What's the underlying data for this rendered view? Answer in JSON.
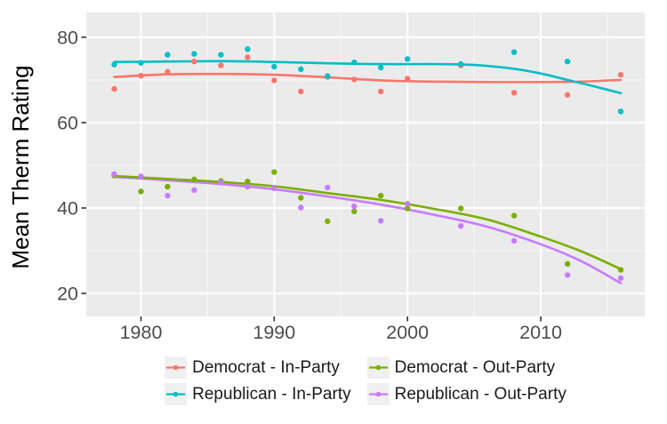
{
  "figure": {
    "background": "#FFFFFF"
  },
  "colors": {
    "panel_bg": "#EBEBEB",
    "grid_major": "#FFFFFF",
    "grid_minor": "#FFFFFF",
    "axis_text": "#4D4D4D",
    "axis_title": "#000000",
    "tick_mark": "#333333",
    "legend_key_bg": "#F0F0F0",
    "legend_text": "#1A1A1A"
  },
  "chart_data": {
    "type": "scatter",
    "subtype": "points-with-loess-smooth-lines",
    "title": "",
    "xlabel": "",
    "ylabel": "Mean Therm Rating",
    "xlim": [
      1975.9,
      2017.8
    ],
    "ylim": [
      14.6,
      85.8
    ],
    "x_ticks": [
      1980,
      1990,
      2000,
      2010
    ],
    "x_minor": [
      1985,
      1995,
      2005,
      2015
    ],
    "y_ticks": [
      20,
      40,
      60,
      80
    ],
    "y_minor": [
      30,
      50,
      70
    ],
    "grid": "on",
    "legend_position": "bottom",
    "years": [
      1978,
      1980,
      1982,
      1984,
      1986,
      1988,
      1990,
      1992,
      1994,
      1996,
      1998,
      2000,
      2004,
      2008,
      2012,
      2016
    ],
    "series": [
      {
        "name": "Democrat - In-Party",
        "color": "#F8766D",
        "values": [
          67.9,
          71.0,
          71.9,
          74.3,
          73.4,
          75.3,
          69.9,
          67.3,
          70.7,
          70.1,
          67.3,
          70.3,
          73.4,
          67.0,
          66.5,
          71.2
        ],
        "trend": [
          [
            1978,
            70.7
          ],
          [
            1982,
            71.3
          ],
          [
            1986,
            71.4
          ],
          [
            1990,
            71.2
          ],
          [
            1994,
            70.6
          ],
          [
            1998,
            69.9
          ],
          [
            2002,
            69.6
          ],
          [
            2006,
            69.5
          ],
          [
            2010,
            69.5
          ],
          [
            2013,
            69.6
          ],
          [
            2016,
            70.0
          ]
        ]
      },
      {
        "name": "Republican - In-Party",
        "color": "#00BFC4",
        "values": [
          73.6,
          74.0,
          75.9,
          76.1,
          75.9,
          77.2,
          73.1,
          72.5,
          70.9,
          74.1,
          72.9,
          74.9,
          73.7,
          76.5,
          74.3,
          62.6
        ],
        "trend": [
          [
            1978,
            74.2
          ],
          [
            1982,
            74.3
          ],
          [
            1986,
            74.4
          ],
          [
            1990,
            74.2
          ],
          [
            1994,
            73.9
          ],
          [
            1998,
            73.7
          ],
          [
            2002,
            73.7
          ],
          [
            2005,
            73.5
          ],
          [
            2008,
            72.6
          ],
          [
            2010,
            71.5
          ],
          [
            2012,
            70.0
          ],
          [
            2014,
            68.5
          ],
          [
            2016,
            66.9
          ]
        ]
      },
      {
        "name": "Democrat - Out-Party",
        "color": "#7CAE00",
        "values": [
          47.6,
          43.9,
          45.0,
          46.7,
          46.3,
          46.2,
          48.4,
          42.4,
          36.9,
          39.2,
          42.9,
          39.9,
          39.9,
          38.2,
          26.9,
          25.5
        ],
        "trend": [
          [
            1978,
            47.5
          ],
          [
            1982,
            46.8
          ],
          [
            1986,
            46.1
          ],
          [
            1990,
            45.1
          ],
          [
            1994,
            43.5
          ],
          [
            1998,
            41.9
          ],
          [
            2002,
            39.8
          ],
          [
            2006,
            37.3
          ],
          [
            2010,
            33.3
          ],
          [
            2013,
            29.9
          ],
          [
            2016,
            25.7
          ]
        ]
      },
      {
        "name": "Republican - Out-Party",
        "color": "#C77CFF",
        "values": [
          47.9,
          47.4,
          42.9,
          44.2,
          46.0,
          45.0,
          44.6,
          40.1,
          44.8,
          40.4,
          37.0,
          41.0,
          35.8,
          32.3,
          24.3,
          23.6
        ],
        "trend": [
          [
            1978,
            47.3
          ],
          [
            1982,
            46.5
          ],
          [
            1986,
            45.6
          ],
          [
            1990,
            44.4
          ],
          [
            1994,
            42.7
          ],
          [
            1998,
            40.8
          ],
          [
            2002,
            38.4
          ],
          [
            2006,
            35.6
          ],
          [
            2010,
            31.5
          ],
          [
            2013,
            27.6
          ],
          [
            2016,
            22.4
          ]
        ]
      }
    ]
  }
}
